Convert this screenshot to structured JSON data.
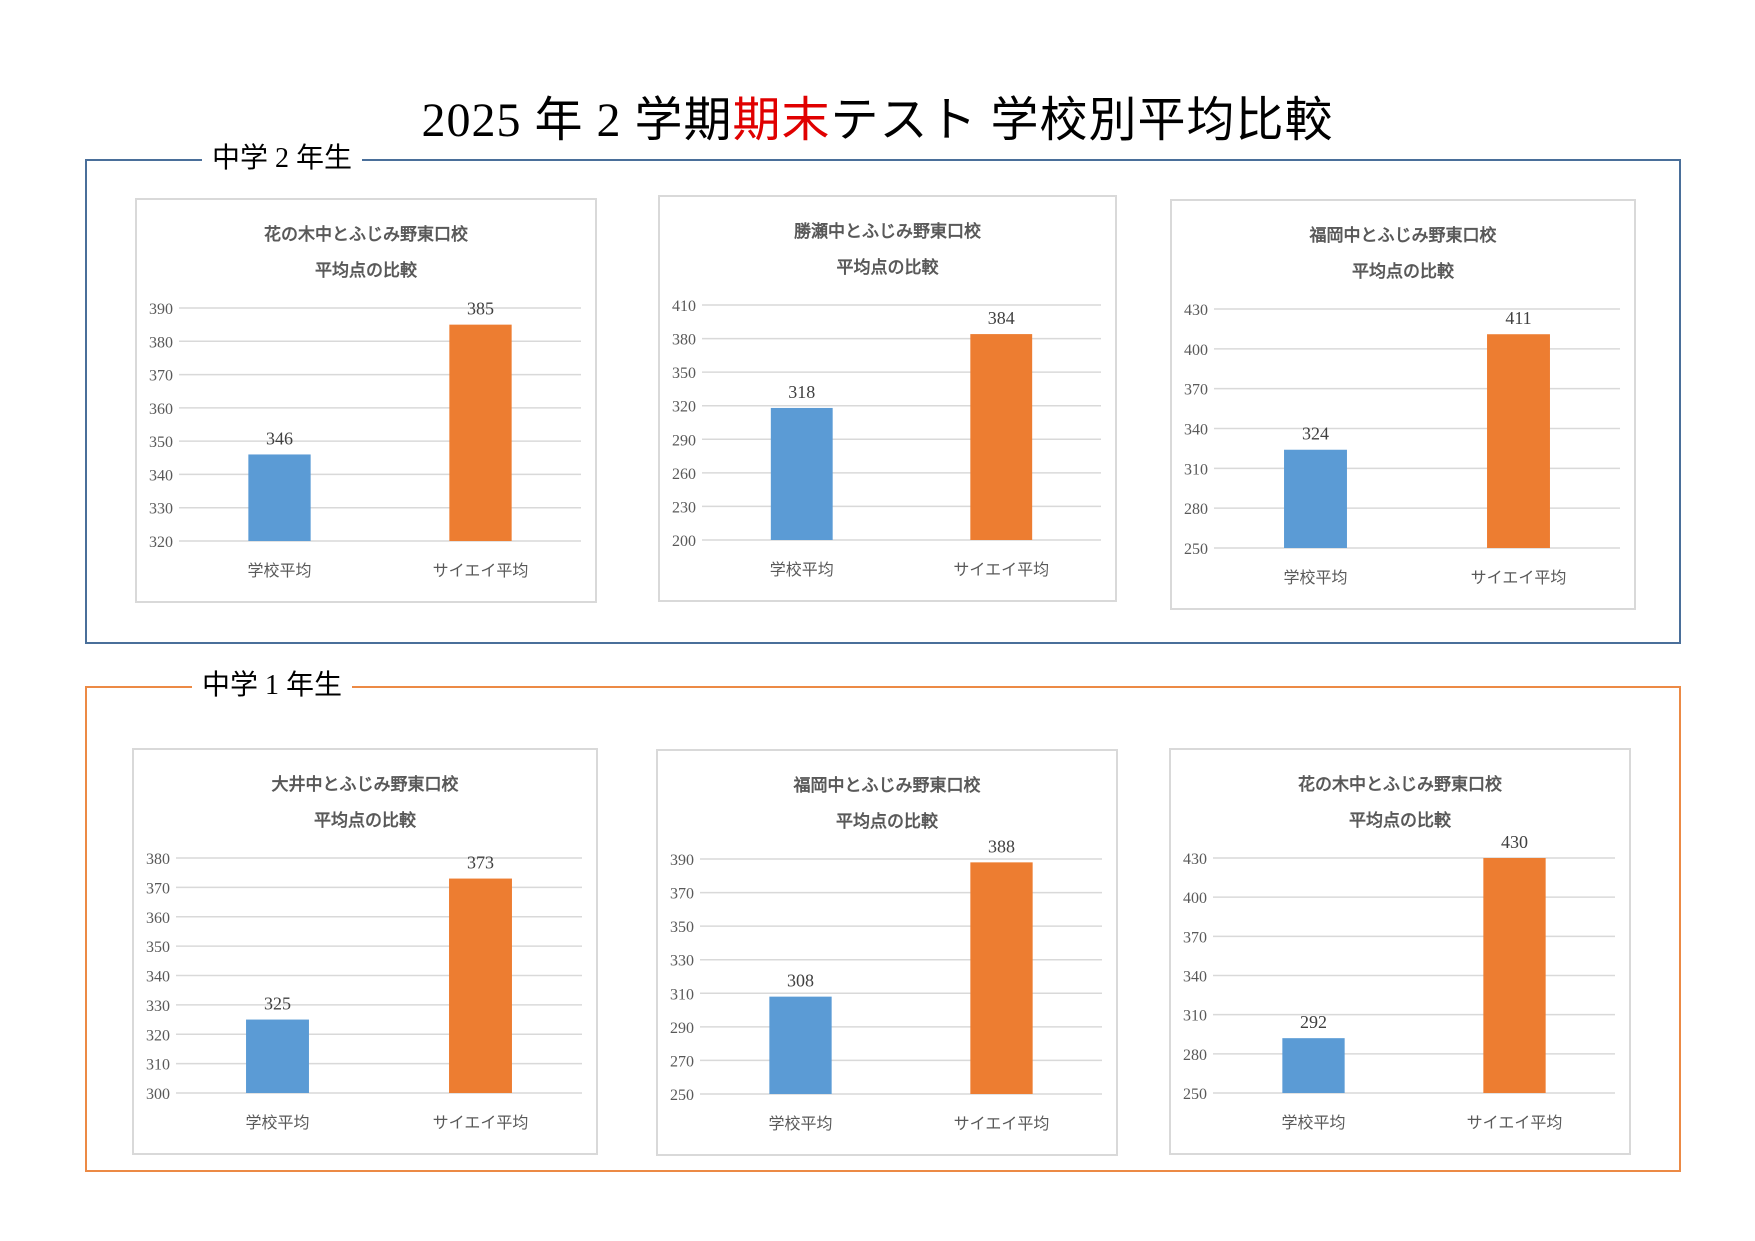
{
  "title": {
    "part1": "2025 年  2 学期",
    "part2_red": "期末",
    "part3": "テスト  学校別平均比較"
  },
  "groups": [
    {
      "label": "中学 2 年生",
      "border_color": "#4a6f9a"
    },
    {
      "label": "中学 1 年生",
      "border_color": "#ec8a45"
    }
  ],
  "colors": {
    "school": "#5b9bd5",
    "saiei": "#ed7d31",
    "title_red": "#e00000"
  },
  "chart_data": [
    {
      "type": "bar",
      "group": "中学 2 年生",
      "title": "花の木中とふじみ野東口校",
      "subtitle": "平均点の比較",
      "categories": [
        "学校平均",
        "サイエイ平均"
      ],
      "values": [
        346,
        385
      ],
      "ylim": [
        320,
        390
      ],
      "yticks": [
        320,
        330,
        340,
        350,
        360,
        370,
        380,
        390
      ],
      "grid": true
    },
    {
      "type": "bar",
      "group": "中学 2 年生",
      "title": "勝瀬中とふじみ野東口校",
      "subtitle": "平均点の比較",
      "categories": [
        "学校平均",
        "サイエイ平均"
      ],
      "values": [
        318,
        384
      ],
      "ylim": [
        200,
        410
      ],
      "yticks": [
        200,
        230,
        260,
        290,
        320,
        350,
        380,
        410
      ],
      "grid": true
    },
    {
      "type": "bar",
      "group": "中学 2 年生",
      "title": "福岡中とふじみ野東口校",
      "subtitle": "平均点の比較",
      "categories": [
        "学校平均",
        "サイエイ平均"
      ],
      "values": [
        324,
        411
      ],
      "ylim": [
        250,
        430
      ],
      "yticks": [
        250,
        280,
        310,
        340,
        370,
        400,
        430
      ],
      "grid": true
    },
    {
      "type": "bar",
      "group": "中学 1 年生",
      "title": "大井中とふじみ野東口校",
      "subtitle": "平均点の比較",
      "categories": [
        "学校平均",
        "サイエイ平均"
      ],
      "values": [
        325,
        373
      ],
      "ylim": [
        300,
        380
      ],
      "yticks": [
        300,
        310,
        320,
        330,
        340,
        350,
        360,
        370,
        380
      ],
      "grid": true
    },
    {
      "type": "bar",
      "group": "中学 1 年生",
      "title": "福岡中とふじみ野東口校",
      "subtitle": "平均点の比較",
      "categories": [
        "学校平均",
        "サイエイ平均"
      ],
      "values": [
        308,
        388
      ],
      "ylim": [
        250,
        390
      ],
      "yticks": [
        250,
        270,
        290,
        310,
        330,
        350,
        370,
        390
      ],
      "grid": true
    },
    {
      "type": "bar",
      "group": "中学 1 年生",
      "title": "花の木中とふじみ野東口校",
      "subtitle": "平均点の比較",
      "categories": [
        "学校平均",
        "サイエイ平均"
      ],
      "values": [
        292,
        430
      ],
      "ylim": [
        250,
        430
      ],
      "yticks": [
        250,
        280,
        310,
        340,
        370,
        400,
        430
      ],
      "grid": true
    }
  ]
}
